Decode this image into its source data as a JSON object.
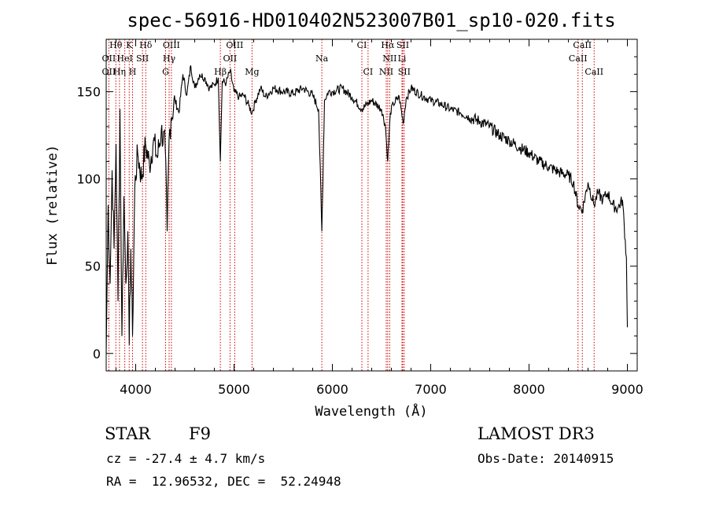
{
  "chart_data": {
    "type": "line",
    "title": "spec-56916-HD010402N523007B01_sp10-020.fits",
    "xlabel": "Wavelength (Å)",
    "ylabel": "Flux (relative)",
    "xlim": [
      3700,
      9100
    ],
    "ylim": [
      -10,
      180
    ],
    "x_ticks": [
      4000,
      5000,
      6000,
      7000,
      8000,
      9000
    ],
    "x_tick_labels": [
      "4000",
      "5000",
      "6000",
      "7000",
      "8000",
      "9000"
    ],
    "y_ticks": [
      0,
      50,
      100,
      150
    ],
    "y_tick_labels": [
      "0",
      "50",
      "100",
      "150"
    ],
    "grid": false,
    "series": [
      {
        "name": "spectrum",
        "x": [
          3700,
          3720,
          3740,
          3760,
          3780,
          3800,
          3820,
          3840,
          3860,
          3880,
          3900,
          3920,
          3934,
          3950,
          3968,
          3990,
          4020,
          4060,
          4100,
          4140,
          4180,
          4220,
          4260,
          4300,
          4320,
          4340,
          4360,
          4400,
          4440,
          4480,
          4520,
          4560,
          4600,
          4650,
          4700,
          4750,
          4800,
          4840,
          4861,
          4880,
          4920,
          4960,
          5000,
          5050,
          5100,
          5150,
          5183,
          5220,
          5270,
          5320,
          5400,
          5500,
          5600,
          5700,
          5800,
          5860,
          5893,
          5920,
          5960,
          6000,
          6100,
          6200,
          6300,
          6400,
          6500,
          6540,
          6563,
          6590,
          6620,
          6680,
          6720,
          6750,
          6800,
          6900,
          7000,
          7100,
          7200,
          7300,
          7400,
          7500,
          7600,
          7700,
          7800,
          7900,
          8000,
          8100,
          8200,
          8300,
          8400,
          8450,
          8498,
          8542,
          8600,
          8662,
          8700,
          8750,
          8800,
          8850,
          8900,
          8950,
          8990,
          9000
        ],
        "values": [
          0,
          85,
          40,
          105,
          60,
          120,
          30,
          140,
          10,
          90,
          40,
          70,
          5,
          60,
          10,
          95,
          115,
          100,
          120,
          108,
          122,
          112,
          128,
          118,
          70,
          124,
          135,
          145,
          138,
          160,
          148,
          165,
          152,
          160,
          158,
          152,
          154,
          158,
          110,
          156,
          155,
          162,
          150,
          147,
          148,
          142,
          138,
          145,
          152,
          147,
          152,
          150,
          149,
          152,
          148,
          140,
          70,
          145,
          150,
          150,
          152,
          147,
          140,
          145,
          140,
          130,
          110,
          138,
          143,
          147,
          132,
          146,
          152,
          148,
          145,
          143,
          140,
          138,
          135,
          133,
          130,
          125,
          122,
          118,
          115,
          110,
          107,
          104,
          102,
          98,
          85,
          82,
          98,
          85,
          92,
          88,
          92,
          85,
          83,
          88,
          55,
          15
        ]
      }
    ],
    "line_markers": [
      {
        "label": "Hθ",
        "x": 3798,
        "row": 0
      },
      {
        "label": "K",
        "x": 3934,
        "row": 0
      },
      {
        "label": "Hδ",
        "x": 4102,
        "row": 0
      },
      {
        "label": "OIII",
        "x": 4363,
        "row": 0
      },
      {
        "label": "OIII",
        "x": 5007,
        "row": 0
      },
      {
        "label": "CI",
        "x": 6300,
        "row": 0
      },
      {
        "label": "Hα",
        "x": 6563,
        "row": 0
      },
      {
        "label": "SII",
        "x": 6716,
        "row": 0
      },
      {
        "label": "CaII",
        "x": 8542,
        "row": 0
      },
      {
        "label": "OII",
        "x": 3727,
        "row": 1
      },
      {
        "label": "HeI",
        "x": 3889,
        "row": 1
      },
      {
        "label": "SII",
        "x": 4069,
        "row": 1
      },
      {
        "label": "Hγ",
        "x": 4340,
        "row": 1
      },
      {
        "label": "OII",
        "x": 4959,
        "row": 1
      },
      {
        "label": "Na",
        "x": 5893,
        "row": 1
      },
      {
        "label": "NII",
        "x": 6583,
        "row": 1
      },
      {
        "label": "Li",
        "x": 6708,
        "row": 1
      },
      {
        "label": "CaII",
        "x": 8498,
        "row": 1
      },
      {
        "label": "OII",
        "x": 3727,
        "row": 2
      },
      {
        "label": "Hη",
        "x": 3835,
        "row": 2
      },
      {
        "label": "H",
        "x": 3968,
        "row": 2
      },
      {
        "label": "G",
        "x": 4304,
        "row": 2
      },
      {
        "label": "Hβ",
        "x": 4861,
        "row": 2
      },
      {
        "label": "Mg",
        "x": 5183,
        "row": 2
      },
      {
        "label": "CI",
        "x": 6363,
        "row": 2
      },
      {
        "label": "NII",
        "x": 6548,
        "row": 2
      },
      {
        "label": "SII",
        "x": 6731,
        "row": 2
      },
      {
        "label": "CaII",
        "x": 8662,
        "row": 2
      }
    ],
    "marker_lines_x": [
      3727,
      3798,
      3835,
      3889,
      3934,
      3968,
      4069,
      4102,
      4304,
      4340,
      4363,
      4861,
      4959,
      5007,
      5183,
      5893,
      6300,
      6363,
      6548,
      6563,
      6583,
      6708,
      6716,
      6731,
      8498,
      8542,
      8662
    ],
    "colors": {
      "line": "#000000",
      "marker": "#cc0000",
      "axis": "#000000"
    }
  },
  "info": {
    "class_label": "STAR",
    "subclass": "F9",
    "survey": "LAMOST DR3",
    "cz": "cz = -27.4 ± 4.7 km/s",
    "obs_date": "Obs-Date: 20140915",
    "coords": "RA =  12.96532, DEC =  52.24948"
  }
}
